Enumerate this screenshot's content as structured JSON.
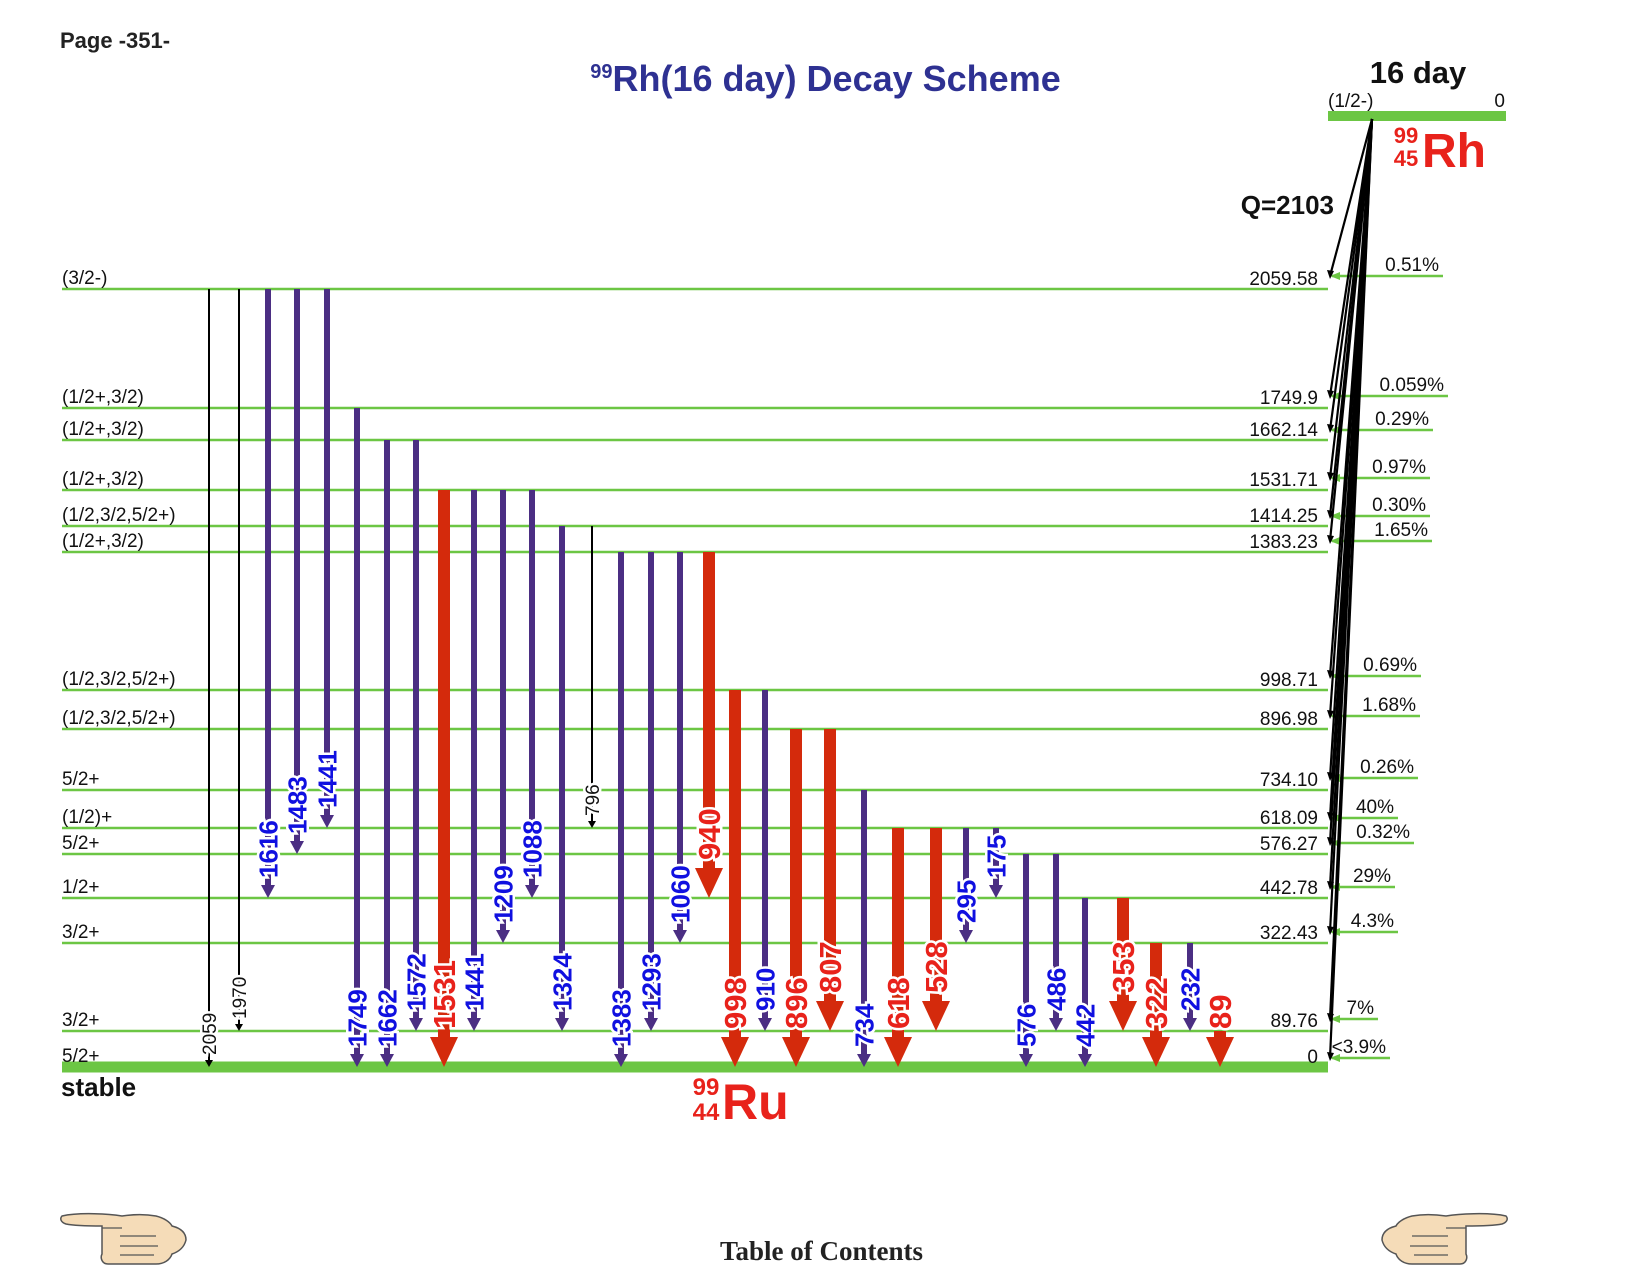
{
  "page_label": "Page -351-",
  "title": {
    "mass_number": "99",
    "text": "Rh(16 day) Decay Scheme"
  },
  "parent": {
    "half_life": "16 day",
    "spin": "(1/2-)",
    "energy": "0",
    "mass": "99",
    "z": "45",
    "symbol": "Rh",
    "q_value": "Q=2103"
  },
  "daughter": {
    "mass": "99",
    "z": "44",
    "symbol": "Ru",
    "stable_label": "stable"
  },
  "levels": [
    {
      "energy": "2059.58",
      "spin": "(3/2-)",
      "feed": "0.51%"
    },
    {
      "energy": "1749.9",
      "spin": "(1/2+,3/2)",
      "feed": "0.059%"
    },
    {
      "energy": "1662.14",
      "spin": "(1/2+,3/2)",
      "feed": "0.29%"
    },
    {
      "energy": "1531.71",
      "spin": "(1/2+,3/2)",
      "feed": "0.97%"
    },
    {
      "energy": "1414.25",
      "spin": "(1/2,3/2,5/2+)",
      "feed": "0.30%"
    },
    {
      "energy": "1383.23",
      "spin": "(1/2+,3/2)",
      "feed": "1.65%"
    },
    {
      "energy": "998.71",
      "spin": "(1/2,3/2,5/2+)",
      "feed": "0.69%"
    },
    {
      "energy": "896.98",
      "spin": "(1/2,3/2,5/2+)",
      "feed": "1.68%"
    },
    {
      "energy": "734.10",
      "spin": "5/2+",
      "feed": "0.26%"
    },
    {
      "energy": "618.09",
      "spin": "(1/2)+",
      "feed": "40%"
    },
    {
      "energy": "576.27",
      "spin": "5/2+",
      "feed": "0.32%"
    },
    {
      "energy": "442.78",
      "spin": "1/2+",
      "feed": "29%"
    },
    {
      "energy": "322.43",
      "spin": "3/2+",
      "feed": "4.3%"
    },
    {
      "energy": "89.76",
      "spin": "3/2+",
      "feed": "7%"
    },
    {
      "energy": "0",
      "spin": "5/2+",
      "feed": "<3.9%"
    }
  ],
  "transitions": [
    {
      "label": "2059",
      "from": "2059.58",
      "to": "0",
      "intensity": "weak"
    },
    {
      "label": "1970",
      "from": "2059.58",
      "to": "89.76",
      "intensity": "weak"
    },
    {
      "label": "1616",
      "from": "2059.58",
      "to": "442.78",
      "intensity": "medium"
    },
    {
      "label": "1483",
      "from": "2059.58",
      "to": "576.27",
      "intensity": "medium"
    },
    {
      "label": "1441",
      "from": "2059.58",
      "to": "618.09",
      "intensity": "medium"
    },
    {
      "label": "1749",
      "from": "1749.9",
      "to": "0",
      "intensity": "medium"
    },
    {
      "label": "1662",
      "from": "1662.14",
      "to": "0",
      "intensity": "medium"
    },
    {
      "label": "1572",
      "from": "1662.14",
      "to": "89.76",
      "intensity": "medium"
    },
    {
      "label": "1531",
      "from": "1531.71",
      "to": "0",
      "intensity": "strong"
    },
    {
      "label": "1441",
      "from": "1531.71",
      "to": "89.76",
      "intensity": "medium"
    },
    {
      "label": "1209",
      "from": "1531.71",
      "to": "322.43",
      "intensity": "medium"
    },
    {
      "label": "1088",
      "from": "1531.71",
      "to": "442.78",
      "intensity": "medium"
    },
    {
      "label": "1324",
      "from": "1414.25",
      "to": "89.76",
      "intensity": "medium"
    },
    {
      "label": "796",
      "from": "1414.25",
      "to": "618.09",
      "intensity": "weak"
    },
    {
      "label": "1383",
      "from": "1383.23",
      "to": "0",
      "intensity": "medium"
    },
    {
      "label": "1293",
      "from": "1383.23",
      "to": "89.76",
      "intensity": "medium"
    },
    {
      "label": "1060",
      "from": "1383.23",
      "to": "322.43",
      "intensity": "medium"
    },
    {
      "label": "940",
      "from": "1383.23",
      "to": "442.78",
      "intensity": "strong"
    },
    {
      "label": "998",
      "from": "998.71",
      "to": "0",
      "intensity": "strong"
    },
    {
      "label": "910",
      "from": "998.71",
      "to": "89.76",
      "intensity": "medium"
    },
    {
      "label": "896",
      "from": "896.98",
      "to": "0",
      "intensity": "strong"
    },
    {
      "label": "807",
      "from": "896.98",
      "to": "89.76",
      "intensity": "strong"
    },
    {
      "label": "734",
      "from": "734.10",
      "to": "0",
      "intensity": "medium"
    },
    {
      "label": "618",
      "from": "618.09",
      "to": "0",
      "intensity": "strong"
    },
    {
      "label": "528",
      "from": "618.09",
      "to": "89.76",
      "intensity": "strong"
    },
    {
      "label": "295",
      "from": "618.09",
      "to": "322.43",
      "intensity": "medium"
    },
    {
      "label": "175",
      "from": "618.09",
      "to": "442.78",
      "intensity": "medium"
    },
    {
      "label": "576",
      "from": "576.27",
      "to": "0",
      "intensity": "medium"
    },
    {
      "label": "486",
      "from": "576.27",
      "to": "89.76",
      "intensity": "medium"
    },
    {
      "label": "442",
      "from": "442.78",
      "to": "0",
      "intensity": "medium"
    },
    {
      "label": "353",
      "from": "442.78",
      "to": "89.76",
      "intensity": "strong"
    },
    {
      "label": "322",
      "from": "322.43",
      "to": "0",
      "intensity": "strong"
    },
    {
      "label": "232",
      "from": "322.43",
      "to": "89.76",
      "intensity": "medium"
    },
    {
      "label": "89",
      "from": "89.76",
      "to": "0",
      "intensity": "strong"
    }
  ],
  "footer": {
    "toc_label": "Table of Contents"
  },
  "colors": {
    "level_line": "#6cc644",
    "medium": "#4b2e83",
    "strong": "#d42a0c",
    "weak": "#000000",
    "title": "#2e3192",
    "red_label": "#e8221b",
    "blue_label": "#1010e0"
  }
}
